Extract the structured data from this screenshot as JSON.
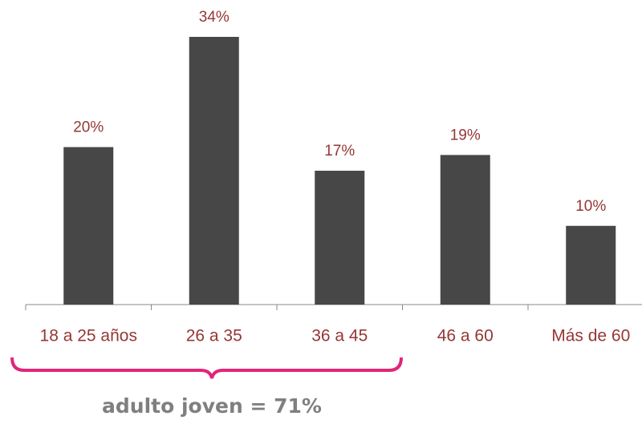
{
  "chart_data": {
    "type": "bar",
    "categories": [
      "18 a 25 años",
      "26 a 35",
      "36 a 45",
      "46 a 60",
      "Más de 60"
    ],
    "values": [
      20,
      34,
      17,
      19,
      10
    ],
    "value_labels": [
      "20%",
      "34%",
      "17%",
      "19%",
      "10%"
    ],
    "color": "#474747",
    "annotation": "adulto joven = 71%"
  }
}
